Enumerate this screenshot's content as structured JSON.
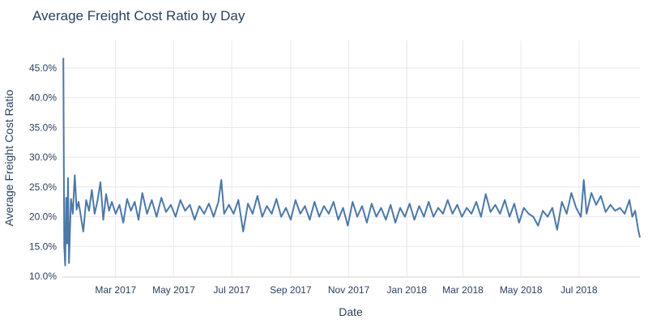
{
  "chart_data": {
    "type": "line",
    "title": "Average Freight Cost Ratio by Day",
    "xlabel": "Date",
    "ylabel": "Average Freight Cost Ratio",
    "x_range": [
      "2017-01-04",
      "2018-09-03"
    ],
    "xlim": [
      "2017-01-04",
      "2018-09-03"
    ],
    "ylim": [
      0.1,
      0.48
    ],
    "y_ticks": [
      0.1,
      0.15,
      0.2,
      0.25,
      0.3,
      0.35,
      0.4,
      0.45
    ],
    "y_tick_labels": [
      "10.0%",
      "15.0%",
      "20.0%",
      "25.0%",
      "30.0%",
      "35.0%",
      "40.0%",
      "45.0%"
    ],
    "x_ticks": [
      "2017-03-01",
      "2017-05-01",
      "2017-07-01",
      "2017-09-01",
      "2017-11-01",
      "2018-01-01",
      "2018-03-01",
      "2018-05-01",
      "2018-07-01"
    ],
    "x_tick_labels": [
      "Mar 2017",
      "May 2017",
      "Jul 2017",
      "Sep 2017",
      "Nov 2017",
      "Jan 2018",
      "Mar 2018",
      "May 2018",
      "Jul 2018"
    ],
    "grid": true,
    "series": [
      {
        "color": "#4c78a8",
        "x": [
          "2017-01-05",
          "2017-01-06",
          "2017-01-07",
          "2017-01-08",
          "2017-01-09",
          "2017-01-10",
          "2017-01-11",
          "2017-01-13",
          "2017-01-15",
          "2017-01-17",
          "2017-01-19",
          "2017-01-21",
          "2017-01-23",
          "2017-01-26",
          "2017-01-29",
          "2017-02-01",
          "2017-02-04",
          "2017-02-07",
          "2017-02-10",
          "2017-02-13",
          "2017-02-16",
          "2017-02-19",
          "2017-02-22",
          "2017-02-25",
          "2017-03-01",
          "2017-03-05",
          "2017-03-09",
          "2017-03-13",
          "2017-03-17",
          "2017-03-21",
          "2017-03-25",
          "2017-03-29",
          "2017-04-03",
          "2017-04-08",
          "2017-04-13",
          "2017-04-18",
          "2017-04-23",
          "2017-04-28",
          "2017-05-03",
          "2017-05-08",
          "2017-05-13",
          "2017-05-18",
          "2017-05-23",
          "2017-05-28",
          "2017-06-02",
          "2017-06-07",
          "2017-06-12",
          "2017-06-17",
          "2017-06-20",
          "2017-06-23",
          "2017-06-28",
          "2017-07-03",
          "2017-07-08",
          "2017-07-13",
          "2017-07-18",
          "2017-07-23",
          "2017-07-28",
          "2017-08-02",
          "2017-08-07",
          "2017-08-12",
          "2017-08-17",
          "2017-08-22",
          "2017-08-27",
          "2017-09-01",
          "2017-09-06",
          "2017-09-11",
          "2017-09-16",
          "2017-09-21",
          "2017-09-26",
          "2017-10-01",
          "2017-10-06",
          "2017-10-11",
          "2017-10-16",
          "2017-10-21",
          "2017-10-26",
          "2017-10-31",
          "2017-11-05",
          "2017-11-10",
          "2017-11-15",
          "2017-11-20",
          "2017-11-25",
          "2017-11-30",
          "2017-12-05",
          "2017-12-10",
          "2017-12-15",
          "2017-12-20",
          "2017-12-25",
          "2017-12-30",
          "2018-01-04",
          "2018-01-09",
          "2018-01-14",
          "2018-01-19",
          "2018-01-24",
          "2018-01-29",
          "2018-02-03",
          "2018-02-08",
          "2018-02-13",
          "2018-02-18",
          "2018-02-23",
          "2018-02-28",
          "2018-03-05",
          "2018-03-10",
          "2018-03-15",
          "2018-03-20",
          "2018-03-25",
          "2018-03-30",
          "2018-04-04",
          "2018-04-09",
          "2018-04-14",
          "2018-04-19",
          "2018-04-24",
          "2018-04-29",
          "2018-05-04",
          "2018-05-09",
          "2018-05-14",
          "2018-05-19",
          "2018-05-24",
          "2018-05-29",
          "2018-06-03",
          "2018-06-08",
          "2018-06-13",
          "2018-06-18",
          "2018-06-23",
          "2018-06-28",
          "2018-07-03",
          "2018-07-06",
          "2018-07-09",
          "2018-07-14",
          "2018-07-19",
          "2018-07-24",
          "2018-07-29",
          "2018-08-03",
          "2018-08-08",
          "2018-08-13",
          "2018-08-18",
          "2018-08-23",
          "2018-08-26",
          "2018-08-29",
          "2018-09-01",
          "2018-09-03"
        ],
        "values": [
          0.467,
          0.15,
          0.118,
          0.232,
          0.155,
          0.265,
          0.122,
          0.23,
          0.205,
          0.27,
          0.212,
          0.225,
          0.205,
          0.175,
          0.228,
          0.21,
          0.245,
          0.205,
          0.228,
          0.258,
          0.195,
          0.238,
          0.21,
          0.225,
          0.205,
          0.22,
          0.19,
          0.23,
          0.21,
          0.225,
          0.195,
          0.24,
          0.205,
          0.228,
          0.2,
          0.232,
          0.208,
          0.22,
          0.2,
          0.228,
          0.21,
          0.22,
          0.195,
          0.218,
          0.205,
          0.222,
          0.2,
          0.225,
          0.262,
          0.205,
          0.22,
          0.205,
          0.228,
          0.175,
          0.222,
          0.205,
          0.235,
          0.2,
          0.218,
          0.205,
          0.23,
          0.2,
          0.215,
          0.195,
          0.228,
          0.205,
          0.218,
          0.195,
          0.225,
          0.2,
          0.218,
          0.205,
          0.225,
          0.195,
          0.215,
          0.185,
          0.225,
          0.2,
          0.218,
          0.19,
          0.222,
          0.2,
          0.215,
          0.195,
          0.22,
          0.19,
          0.215,
          0.2,
          0.222,
          0.195,
          0.218,
          0.2,
          0.225,
          0.2,
          0.215,
          0.205,
          0.228,
          0.205,
          0.22,
          0.2,
          0.215,
          0.205,
          0.225,
          0.2,
          0.238,
          0.208,
          0.22,
          0.205,
          0.228,
          0.2,
          0.222,
          0.19,
          0.215,
          0.205,
          0.2,
          0.185,
          0.21,
          0.2,
          0.215,
          0.178,
          0.225,
          0.205,
          0.24,
          0.215,
          0.2,
          0.262,
          0.205,
          0.24,
          0.22,
          0.235,
          0.208,
          0.22,
          0.21,
          0.215,
          0.205,
          0.228,
          0.2,
          0.21,
          0.18,
          0.165
        ]
      }
    ]
  }
}
